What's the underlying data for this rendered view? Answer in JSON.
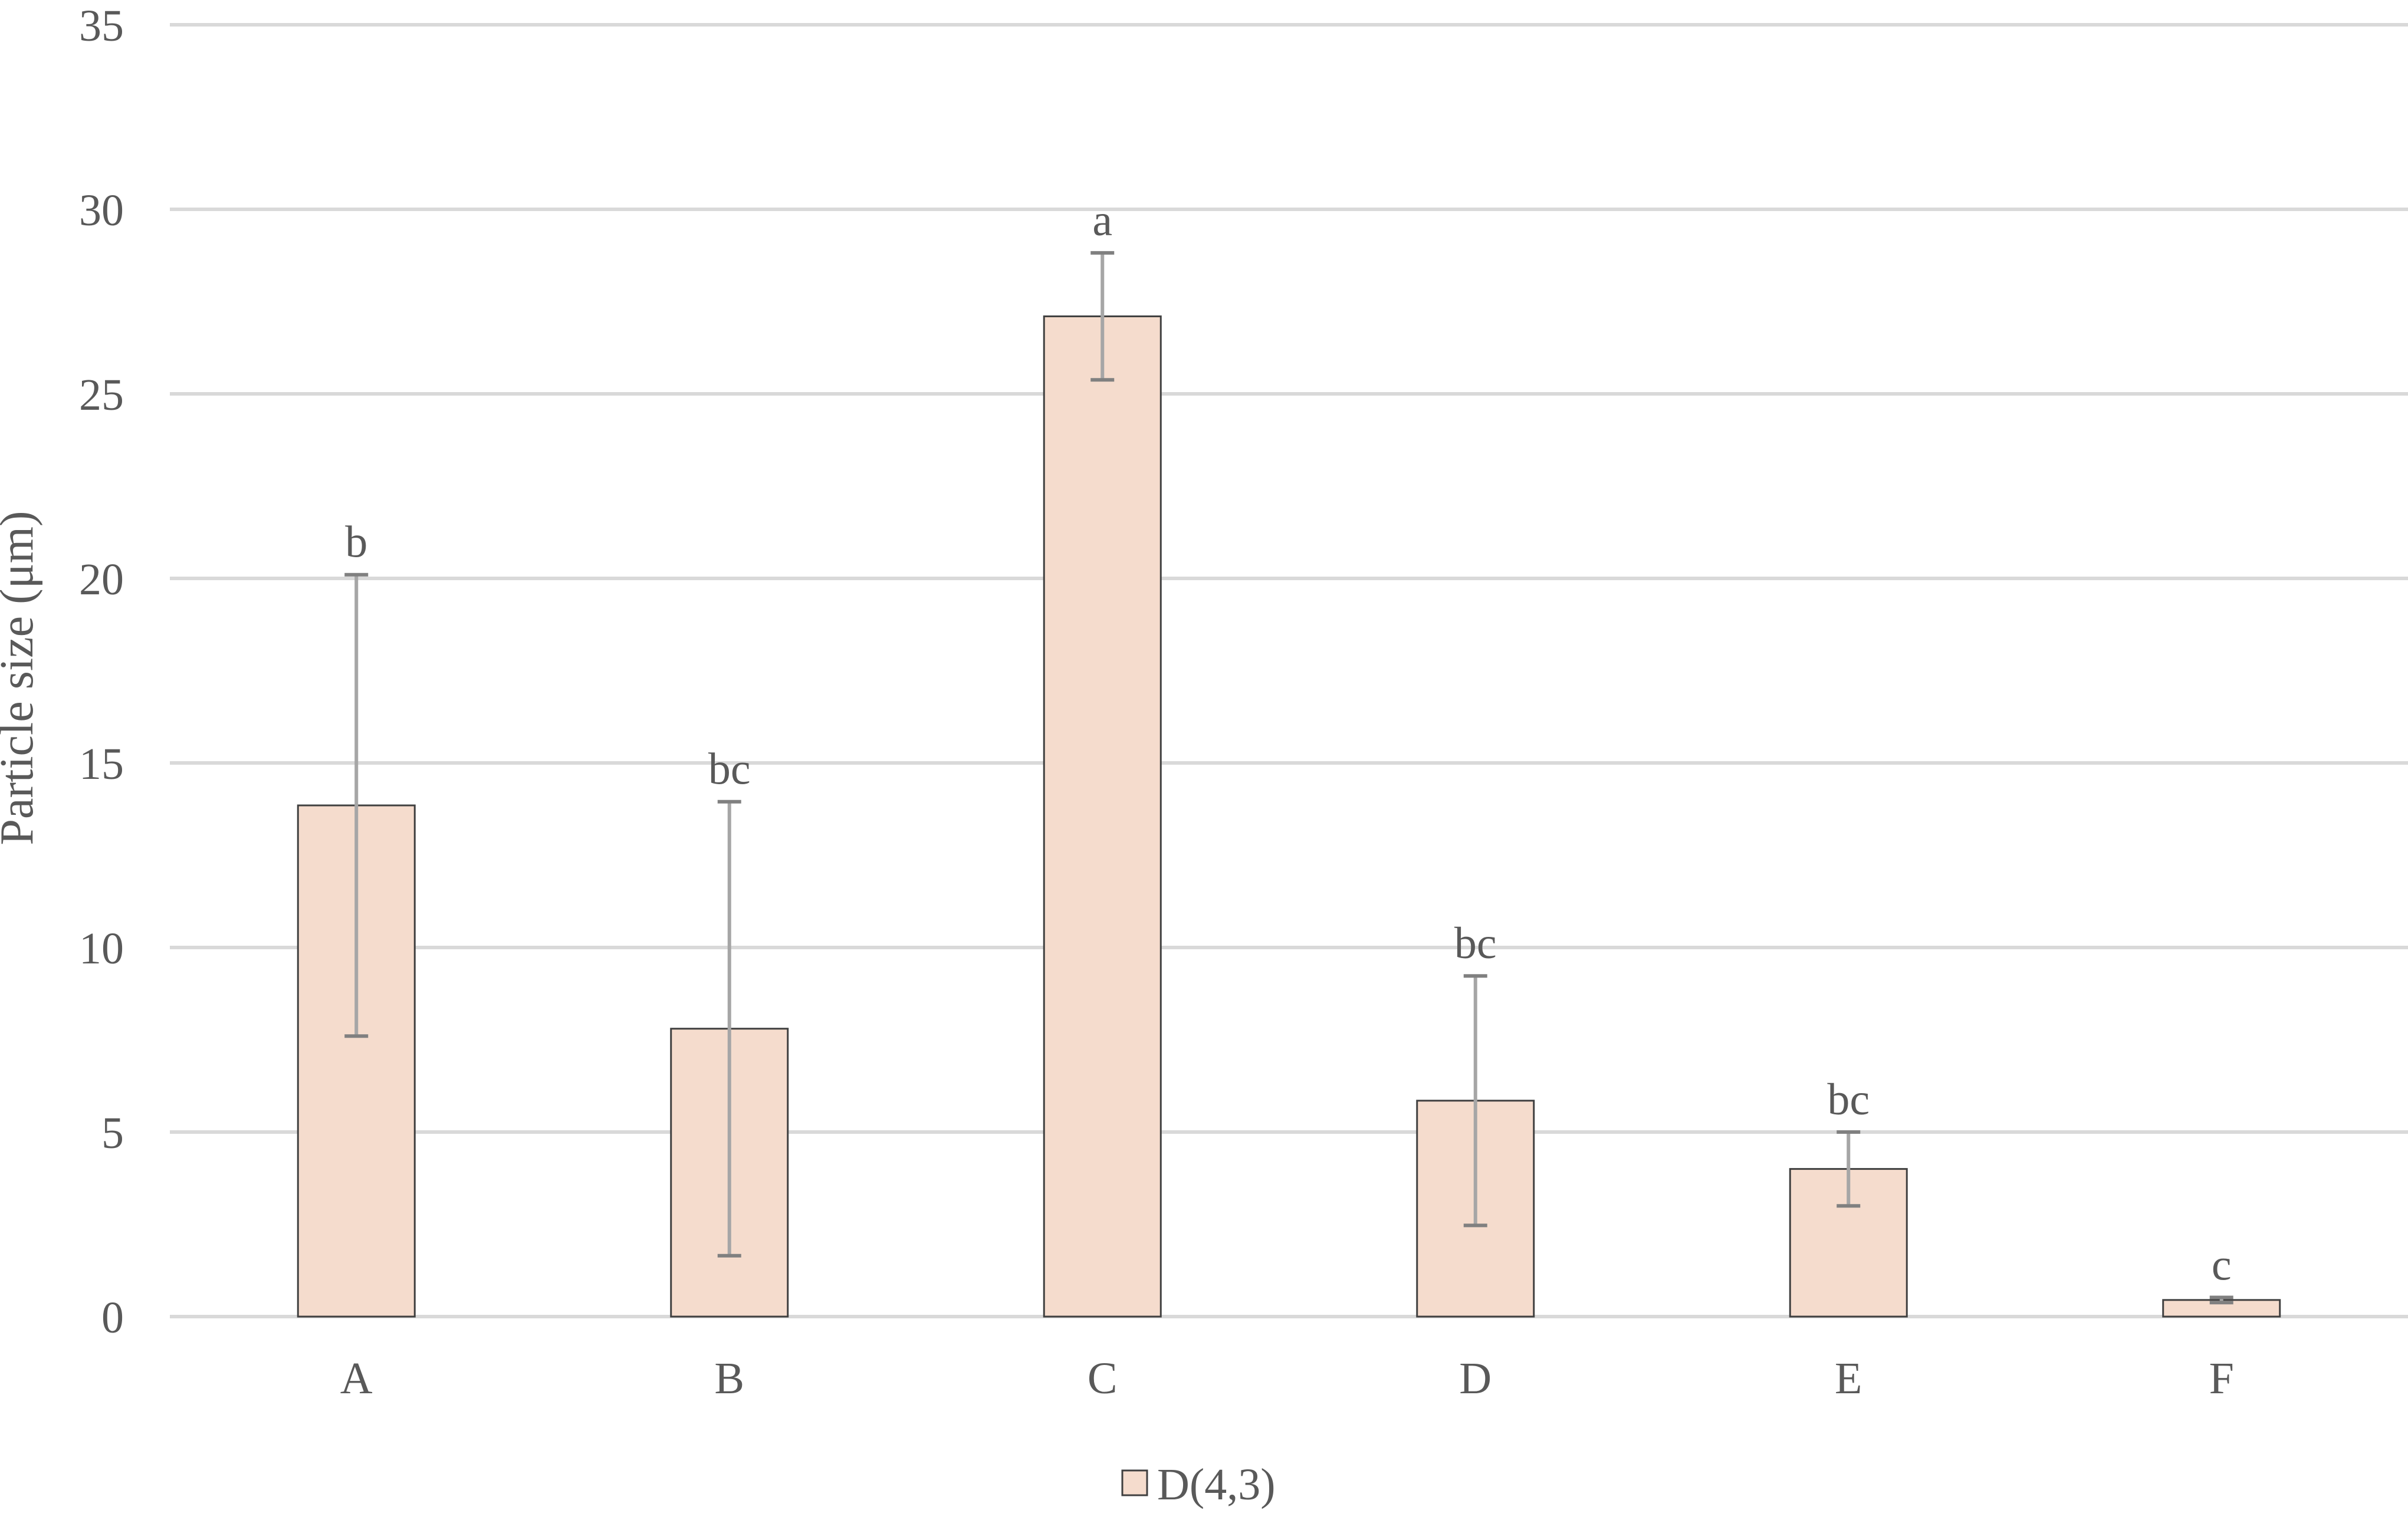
{
  "chart_data": {
    "type": "bar",
    "title": "",
    "xlabel": "",
    "ylabel": "Particle size (μm)",
    "categories": [
      "A",
      "B",
      "C",
      "D",
      "E",
      "F"
    ],
    "series": [
      {
        "name": "D(4,3)",
        "values": [
          13.85,
          7.8,
          27.1,
          5.85,
          4.0,
          0.45
        ],
        "error": [
          6.25,
          6.15,
          1.72,
          3.38,
          1.0,
          0.07
        ],
        "significance_labels": [
          "b",
          "bc",
          "a",
          "bc",
          "bc",
          "c"
        ],
        "fill": "#f5dccd",
        "stroke": "#404040"
      }
    ],
    "ylim": [
      0,
      35
    ],
    "yticks": [
      0,
      5,
      10,
      15,
      20,
      25,
      30,
      35
    ],
    "grid": true,
    "legend": "bottom-center",
    "colors": {
      "gridline": "#d9d9d9",
      "axis_text": "#595959",
      "error_bar": "#a6a6a6",
      "error_cap": "#808080"
    }
  }
}
